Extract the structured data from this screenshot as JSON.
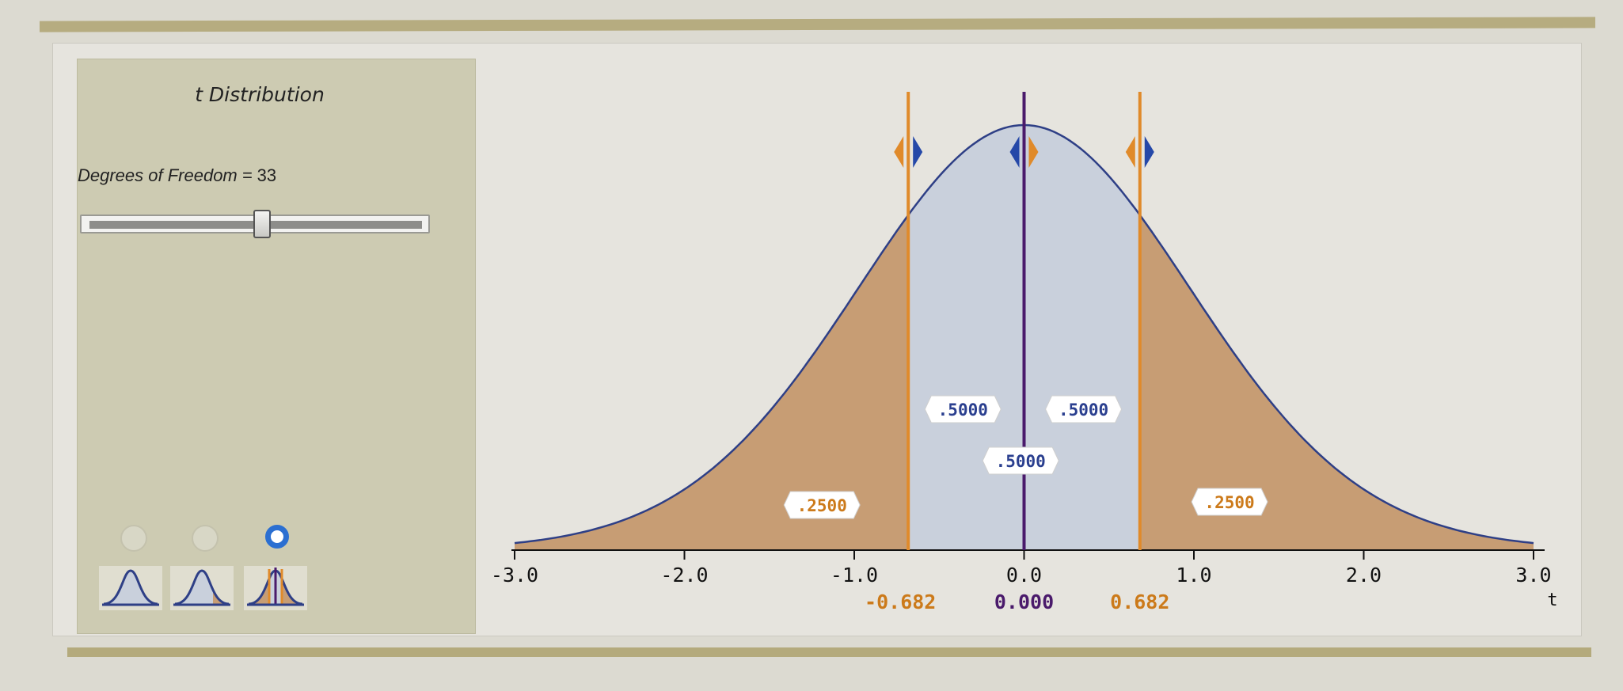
{
  "panel": {
    "title": "t Distribution",
    "df_label": "Degrees of Freedom",
    "df_equals": "=",
    "df_value": "33",
    "df_slider_fraction": 0.5,
    "selected_mode_index": 2,
    "modes": [
      "one-tail-view-icon",
      "two-tail-view-icon",
      "critical-values-view-icon"
    ]
  },
  "colors": {
    "tail_fill": "#c79d74",
    "center_fill": "#c9d0dc",
    "curve": "#2e3f86",
    "orange_marker": "#e08a2a",
    "purple_marker": "#4a1a6b",
    "blue_arrow": "#2548a8",
    "orange_label": "#cc7a1a",
    "blue_label": "#2a3f8f"
  },
  "chart_data": {
    "type": "area",
    "distribution": "t",
    "degrees_of_freedom": 33,
    "xlim": [
      -3.0,
      3.0
    ],
    "xlabel": "t",
    "x_ticks": [
      "-3.0",
      "-2.0",
      "-1.0",
      "0.0",
      "1.0",
      "2.0",
      "3.0"
    ],
    "x_tick_values": [
      -3,
      -2,
      -1,
      0,
      1,
      2,
      3
    ],
    "markers": [
      {
        "value": -0.682,
        "label": "-0.682",
        "color": "orange"
      },
      {
        "value": 0.0,
        "label": "0.000",
        "color": "purple"
      },
      {
        "value": 0.682,
        "label": "0.682",
        "color": "orange"
      }
    ],
    "probabilities": {
      "left_tail": ".2500",
      "right_tail": ".2500",
      "left_center": ".5000",
      "right_center": ".5000",
      "middle": ".5000"
    }
  }
}
